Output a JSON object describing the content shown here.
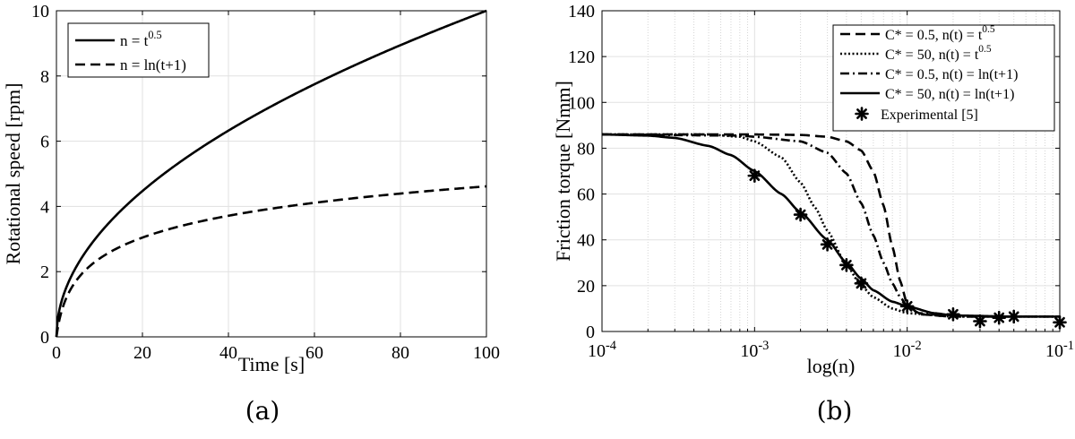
{
  "chart_data": [
    {
      "type": "line",
      "sublabel": "(a)",
      "xlabel": "Time [s]",
      "ylabel": "Rotational speed [rpm]",
      "xlim": [
        0,
        100
      ],
      "ylim": [
        0,
        10
      ],
      "xticks": [
        0,
        20,
        40,
        60,
        80,
        100
      ],
      "yticks": [
        0,
        2,
        4,
        6,
        8,
        10
      ],
      "grid": true,
      "legend_position": "top-left",
      "series": [
        {
          "name": "n = t^0.5",
          "name_base": "n = t",
          "name_sup": "0.5",
          "style": "solid",
          "x": [
            0,
            1,
            2,
            4,
            6,
            10,
            15,
            20,
            30,
            40,
            50,
            60,
            70,
            80,
            90,
            100
          ],
          "y": [
            0,
            1,
            1.41,
            2,
            2.45,
            3.16,
            3.87,
            4.47,
            5.48,
            6.32,
            7.07,
            7.75,
            8.37,
            8.94,
            9.49,
            10
          ]
        },
        {
          "name": "n = ln(t+1)",
          "style": "dashed",
          "x": [
            0,
            1,
            2,
            4,
            6,
            10,
            15,
            20,
            30,
            40,
            50,
            60,
            70,
            80,
            90,
            100
          ],
          "y": [
            0,
            0.69,
            1.1,
            1.61,
            1.95,
            2.4,
            2.77,
            3.04,
            3.43,
            3.71,
            3.93,
            4.11,
            4.26,
            4.39,
            4.51,
            4.62
          ]
        }
      ]
    },
    {
      "type": "line",
      "sublabel": "(b)",
      "xlabel": "log(n)",
      "ylabel": "Friction torque [Nmm]",
      "xscale": "log",
      "xlim": [
        0.0001,
        0.1
      ],
      "ylim": [
        0,
        140
      ],
      "xticks": [
        0.0001,
        0.001,
        0.01,
        0.1
      ],
      "xtick_labels": [
        {
          "base": "10",
          "exp": "-4"
        },
        {
          "base": "10",
          "exp": "-3"
        },
        {
          "base": "10",
          "exp": "-2"
        },
        {
          "base": "10",
          "exp": "-1"
        }
      ],
      "yticks": [
        0,
        20,
        40,
        60,
        80,
        100,
        120,
        140
      ],
      "grid": true,
      "legend_position": "top-right",
      "series": [
        {
          "name": "C* = 0.5,  n(t) = t^0.5",
          "name_base": "C* = 0.5,  n(t) = t",
          "name_sup": "0.5",
          "style": "dashed",
          "x": [
            0.0001,
            0.001,
            0.002,
            0.003,
            0.004,
            0.005,
            0.006,
            0.007,
            0.008,
            0.009,
            0.01,
            0.012,
            0.02,
            0.05,
            0.1
          ],
          "y": [
            86,
            86,
            85.8,
            85,
            83,
            79,
            70,
            55,
            37,
            22,
            12,
            7.5,
            6.5,
            6.5,
            6.5
          ]
        },
        {
          "name": "C* = 50,  n(t) = t^0.5",
          "name_base": "C* = 50,  n(t) = t",
          "name_sup": "0.5",
          "style": "dotted",
          "x": [
            0.0001,
            0.0005,
            0.0008,
            0.001,
            0.0015,
            0.002,
            0.0025,
            0.003,
            0.004,
            0.005,
            0.006,
            0.008,
            0.01,
            0.02,
            0.05,
            0.1
          ],
          "y": [
            86,
            86,
            85,
            83,
            76,
            65,
            54,
            44,
            29,
            20,
            15,
            10,
            8,
            6.5,
            6.5,
            6.5
          ]
        },
        {
          "name": "C* = 0.5,  n(t) = ln(t+1)",
          "style": "dashdot",
          "x": [
            0.0001,
            0.0008,
            0.001,
            0.002,
            0.003,
            0.004,
            0.005,
            0.006,
            0.007,
            0.008,
            0.009,
            0.01,
            0.012,
            0.02,
            0.05,
            0.1
          ],
          "y": [
            86,
            85.5,
            85,
            83,
            78,
            69,
            56,
            42,
            30,
            21,
            15,
            11,
            8,
            6.5,
            6.5,
            6.5
          ]
        },
        {
          "name": "C* = 50,  n(t) = ln(t+1)",
          "style": "solid",
          "x": [
            0.0001,
            0.0002,
            0.0003,
            0.0005,
            0.0007,
            0.001,
            0.0015,
            0.002,
            0.003,
            0.004,
            0.005,
            0.006,
            0.008,
            0.01,
            0.015,
            0.02,
            0.05,
            0.1
          ],
          "y": [
            86,
            85.5,
            84.5,
            81,
            77,
            70,
            60,
            52,
            40,
            30,
            23,
            18,
            13,
            11,
            8,
            7,
            6.5,
            6.5
          ]
        },
        {
          "name": "Experimental [5]",
          "style": "asterisk",
          "x": [
            0.001,
            0.002,
            0.003,
            0.004,
            0.005,
            0.01,
            0.02,
            0.03,
            0.04,
            0.05,
            0.1
          ],
          "y": [
            68,
            51,
            38,
            29,
            21,
            11,
            7.5,
            4.5,
            6,
            6.5,
            4
          ]
        }
      ]
    }
  ]
}
